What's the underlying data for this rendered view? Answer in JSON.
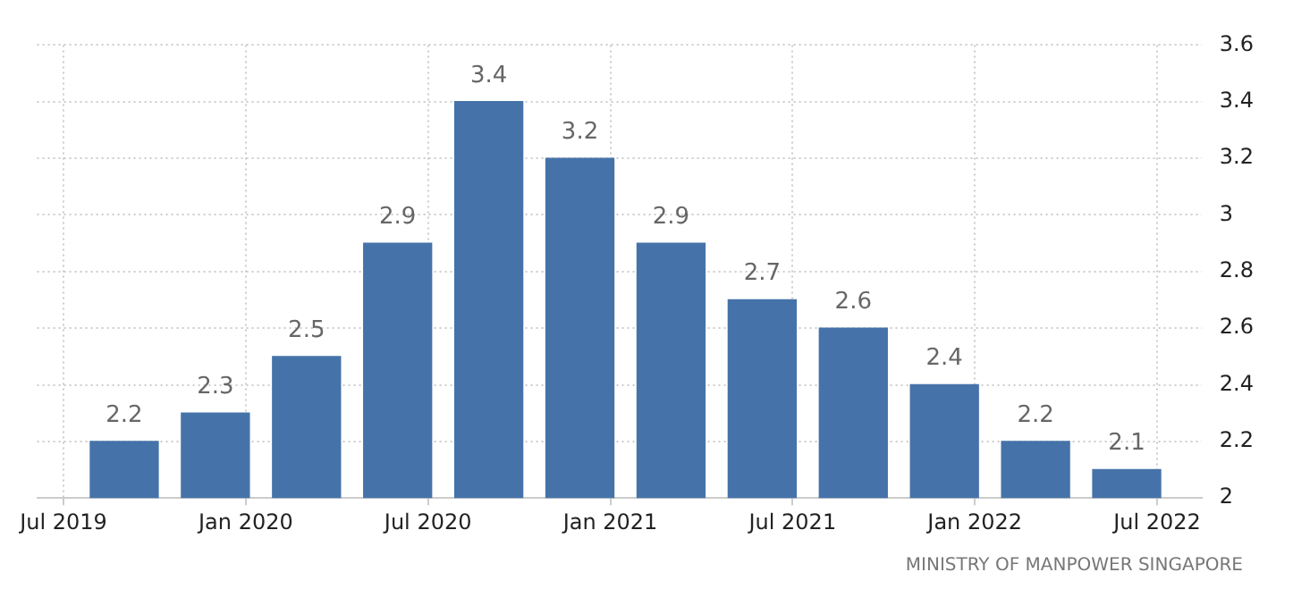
{
  "chart_data": {
    "type": "bar",
    "x": [
      "2019-09",
      "2019-12",
      "2020-03",
      "2020-06",
      "2020-09",
      "2020-12",
      "2021-03",
      "2021-06",
      "2021-09",
      "2021-12",
      "2022-03",
      "2022-06"
    ],
    "values": [
      2.2,
      2.3,
      2.5,
      2.9,
      3.4,
      3.2,
      2.9,
      2.7,
      2.6,
      2.4,
      2.2,
      2.1
    ],
    "color": "#4573a9",
    "data_labels": true,
    "xlim": [
      "2019-06-05",
      "2022-08-15"
    ],
    "xticks": [
      {
        "value": "2019-07",
        "label": "Jul 2019"
      },
      {
        "value": "2020-01",
        "label": "Jan 2020"
      },
      {
        "value": "2020-07",
        "label": "Jul 2020"
      },
      {
        "value": "2021-01",
        "label": "Jan 2021"
      },
      {
        "value": "2021-07",
        "label": "Jul 2021"
      },
      {
        "value": "2022-01",
        "label": "Jan 2022"
      },
      {
        "value": "2022-07",
        "label": "Jul 2022"
      }
    ],
    "ylim": [
      2,
      3.6
    ],
    "yticks": [
      2,
      2.2,
      2.4,
      2.6,
      2.8,
      3,
      3.2,
      3.4,
      3.6
    ],
    "grid": true,
    "legend": false,
    "annotations": [
      "MINISTRY OF MANPOWER SINGAPORE"
    ]
  }
}
